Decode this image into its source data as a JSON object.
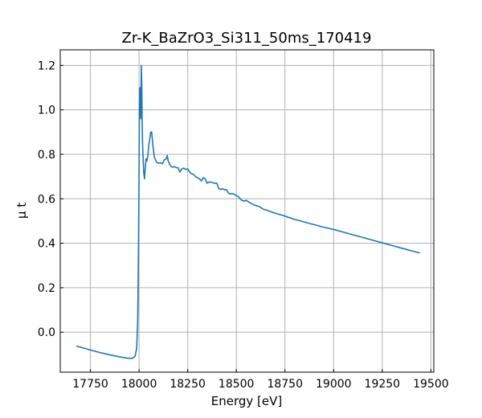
{
  "chart_data": {
    "type": "line",
    "title": "Zr-K_BaZrO3_Si311_50ms_170419",
    "xlabel": "Energy [eV]",
    "ylabel": "μ t",
    "xlim": [
      17595,
      19515
    ],
    "ylim": [
      -0.18,
      1.27
    ],
    "xticks": [
      17750,
      18000,
      18250,
      18500,
      18750,
      19000,
      19250,
      19500
    ],
    "yticks": [
      0.0,
      0.2,
      0.4,
      0.6,
      0.8,
      1.0,
      1.2
    ],
    "grid": true,
    "legend": "none",
    "colors": {
      "line": "#1f77b4",
      "grid": "#b0b0b0"
    },
    "series": [
      {
        "x": [
          17680,
          17750,
          17800,
          17850,
          17900,
          17940,
          17965,
          17980,
          17988,
          17993,
          17997,
          18000,
          18002,
          18004,
          18006,
          18008,
          18010,
          18012,
          18014,
          18016,
          18018,
          18020,
          18024,
          18028,
          18032,
          18036,
          18040,
          18045,
          18050,
          18055,
          18060,
          18065,
          18070,
          18078,
          18085,
          18090,
          18100,
          18110,
          18120,
          18130,
          18140,
          18145,
          18150,
          18160,
          18170,
          18180,
          18190,
          18200,
          18210,
          18220,
          18230,
          18240,
          18250,
          18260,
          18270,
          18280,
          18290,
          18300,
          18310,
          18320,
          18330,
          18340,
          18350,
          18360,
          18370,
          18380,
          18390,
          18400,
          18410,
          18420,
          18430,
          18440,
          18450,
          18460,
          18470,
          18480,
          18490,
          18500,
          18510,
          18520,
          18530,
          18540,
          18550,
          18560,
          18570,
          18580,
          18590,
          18600,
          18610,
          18620,
          18630,
          18640,
          18650,
          18660,
          18670,
          18680,
          18690,
          18700,
          18720,
          18740,
          18760,
          18780,
          18800,
          18820,
          18840,
          18860,
          18880,
          18900,
          18920,
          18940,
          18960,
          18980,
          19000,
          19050,
          19100,
          19150,
          19200,
          19250,
          19300,
          19350,
          19400,
          19440
        ],
        "y": [
          -0.063,
          -0.08,
          -0.092,
          -0.102,
          -0.111,
          -0.117,
          -0.118,
          -0.108,
          -0.07,
          0.05,
          0.35,
          0.72,
          1.02,
          1.1,
          0.98,
          0.96,
          1.06,
          1.2,
          1.1,
          0.95,
          0.85,
          0.8,
          0.72,
          0.69,
          0.74,
          0.78,
          0.77,
          0.79,
          0.84,
          0.87,
          0.9,
          0.9,
          0.85,
          0.79,
          0.775,
          0.765,
          0.76,
          0.762,
          0.758,
          0.775,
          0.78,
          0.795,
          0.77,
          0.75,
          0.742,
          0.745,
          0.74,
          0.74,
          0.72,
          0.735,
          0.738,
          0.732,
          0.735,
          0.72,
          0.712,
          0.71,
          0.7,
          0.695,
          0.69,
          0.68,
          0.695,
          0.69,
          0.67,
          0.675,
          0.675,
          0.672,
          0.67,
          0.67,
          0.645,
          0.642,
          0.645,
          0.64,
          0.64,
          0.625,
          0.622,
          0.623,
          0.62,
          0.615,
          0.61,
          0.6,
          0.592,
          0.59,
          0.593,
          0.588,
          0.582,
          0.578,
          0.572,
          0.57,
          0.567,
          0.564,
          0.558,
          0.553,
          0.55,
          0.548,
          0.544,
          0.541,
          0.538,
          0.535,
          0.53,
          0.525,
          0.519,
          0.513,
          0.507,
          0.503,
          0.498,
          0.493,
          0.488,
          0.484,
          0.479,
          0.474,
          0.47,
          0.466,
          0.462,
          0.45,
          0.438,
          0.426,
          0.414,
          0.402,
          0.39,
          0.378,
          0.366,
          0.357
        ]
      }
    ]
  }
}
